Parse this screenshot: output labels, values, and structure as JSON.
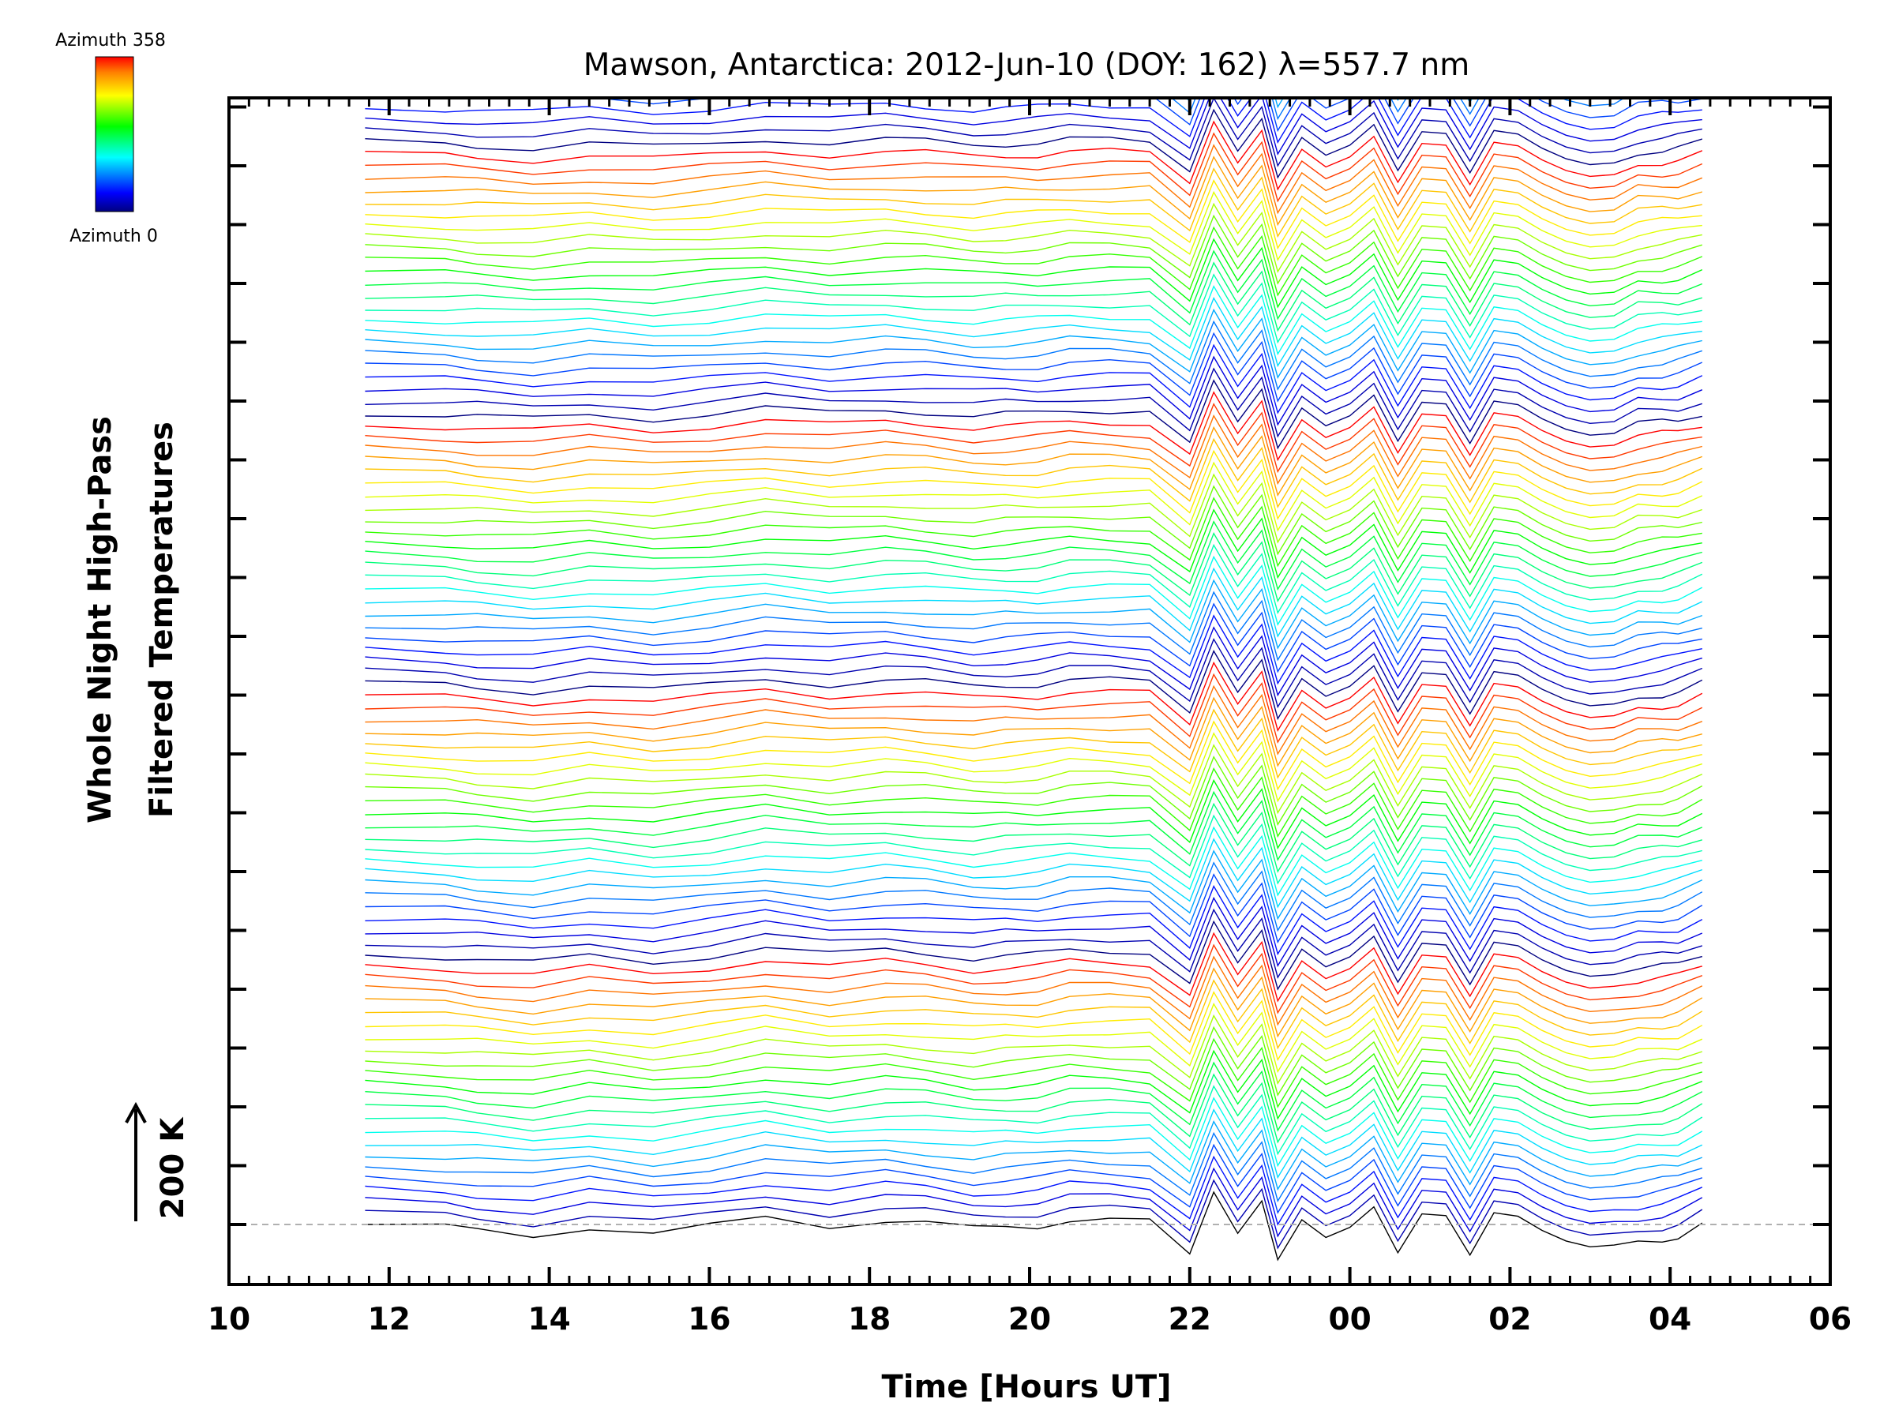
{
  "chart_data": {
    "type": "line",
    "title": "Mawson, Antarctica: 2012-Jun-10 (DOY: 162) λ=557.7 nm",
    "xlabel": "Time [Hours UT]",
    "ylabel": [
      "Whole Night High-Pass",
      "Filtered Temperatures"
    ],
    "xlim": [
      10,
      30
    ],
    "x_tick_labels": [
      "10",
      "12",
      "14",
      "16",
      "18",
      "20",
      "22",
      "00",
      "02",
      "04",
      "06"
    ],
    "x_tick_hours": [
      10,
      12,
      14,
      16,
      18,
      20,
      22,
      24,
      26,
      28,
      30
    ],
    "scale_bar": {
      "label": "200 K",
      "value_k": 200
    },
    "colorbar": {
      "max_label": "Azimuth 358",
      "min_label": "Azimuth 0",
      "colormap": "rainbow",
      "min_azimuth": 0,
      "max_azimuth": 358
    },
    "baseline": {
      "style": "dashed",
      "color": "#b0b0b0"
    },
    "stacked_traces": 115,
    "trace_offset_k": 20,
    "grid": false,
    "legend": "none",
    "series": [
      {
        "x": [
          11.7,
          12.7,
          13.1,
          13.8,
          14.5,
          15.3,
          16.0,
          16.7,
          17.5,
          18.2,
          18.7,
          19.3,
          19.7,
          20.1,
          20.5,
          21.0,
          21.5,
          22.0,
          22.3,
          22.6,
          22.9,
          23.1,
          23.4,
          23.7,
          24.0,
          24.3,
          24.6,
          24.9,
          25.2,
          25.5,
          25.8,
          26.1,
          26.4,
          26.7,
          27.0,
          27.3,
          27.6,
          27.9,
          28.1,
          28.4
        ],
        "y": [
          0,
          -5,
          -10,
          -18,
          -4,
          -16,
          -4,
          12,
          -2,
          8,
          3,
          -8,
          -4,
          -2,
          8,
          7,
          4,
          -50,
          55,
          -15,
          40,
          -60,
          8,
          -22,
          -5,
          30,
          -48,
          18,
          15,
          -52,
          20,
          14,
          -10,
          -28,
          -38,
          -35,
          -30,
          -25,
          -20,
          0
        ]
      }
    ]
  }
}
